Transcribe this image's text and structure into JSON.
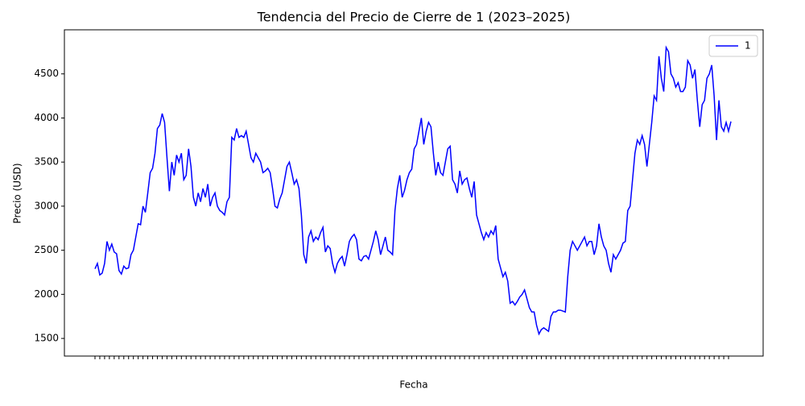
{
  "chart_data": {
    "type": "line",
    "title": "Tendencia del Precio de Cierre de 1 (2023–2025)",
    "x_label": "Fecha",
    "y_label": "Precio (USD)",
    "ylim": [
      1300,
      5000
    ],
    "yticks": [
      1500,
      2000,
      2500,
      3000,
      3500,
      4000,
      4500
    ],
    "legend": "upper right",
    "series": [
      {
        "name": "1",
        "color": "#0000ff",
        "values": [
          2290,
          2350,
          2220,
          2240,
          2350,
          2600,
          2500,
          2570,
          2480,
          2460,
          2270,
          2230,
          2320,
          2290,
          2300,
          2450,
          2500,
          2650,
          2800,
          2790,
          3000,
          2930,
          3150,
          3380,
          3430,
          3600,
          3880,
          3920,
          4050,
          3950,
          3550,
          3170,
          3500,
          3350,
          3580,
          3500,
          3600,
          3300,
          3350,
          3650,
          3450,
          3100,
          3000,
          3150,
          3050,
          3200,
          3100,
          3250,
          3000,
          3100,
          3150,
          3000,
          2950,
          2930,
          2900,
          3050,
          3100,
          3780,
          3750,
          3880,
          3780,
          3800,
          3780,
          3850,
          3700,
          3550,
          3500,
          3600,
          3550,
          3500,
          3380,
          3400,
          3430,
          3380,
          3200,
          3000,
          2980,
          3080,
          3150,
          3300,
          3450,
          3500,
          3380,
          3250,
          3300,
          3200,
          2900,
          2450,
          2350,
          2650,
          2720,
          2600,
          2650,
          2620,
          2700,
          2760,
          2480,
          2550,
          2520,
          2350,
          2250,
          2350,
          2400,
          2430,
          2320,
          2450,
          2600,
          2650,
          2680,
          2620,
          2400,
          2380,
          2430,
          2440,
          2400,
          2500,
          2600,
          2720,
          2620,
          2450,
          2550,
          2650,
          2500,
          2480,
          2450,
          2950,
          3200,
          3350,
          3100,
          3180,
          3300,
          3380,
          3420,
          3650,
          3700,
          3850,
          4000,
          3700,
          3850,
          3950,
          3900,
          3600,
          3350,
          3500,
          3380,
          3350,
          3500,
          3650,
          3680,
          3300,
          3250,
          3150,
          3400,
          3250,
          3300,
          3320,
          3200,
          3100,
          3280,
          2900,
          2800,
          2700,
          2620,
          2700,
          2650,
          2720,
          2680,
          2780,
          2400,
          2300,
          2200,
          2250,
          2150,
          1900,
          1920,
          1880,
          1920,
          1970,
          2000,
          2050,
          1950,
          1850,
          1800,
          1800,
          1650,
          1550,
          1600,
          1620,
          1600,
          1580,
          1750,
          1800,
          1800,
          1820,
          1820,
          1810,
          1800,
          2200,
          2500,
          2600,
          2550,
          2500,
          2550,
          2600,
          2650,
          2550,
          2600,
          2600,
          2450,
          2550,
          2800,
          2650,
          2550,
          2500,
          2350,
          2250,
          2450,
          2400,
          2450,
          2500,
          2580,
          2600,
          2950,
          3000,
          3300,
          3600,
          3750,
          3700,
          3800,
          3700,
          3450,
          3700,
          3950,
          4250,
          4200,
          4700,
          4450,
          4300,
          4800,
          4750,
          4500,
          4450,
          4350,
          4400,
          4300,
          4300,
          4350,
          4650,
          4600,
          4450,
          4550,
          4200,
          3900,
          4150,
          4200,
          4450,
          4500,
          4600,
          4250,
          3750,
          4200,
          3900,
          3850,
          3950,
          3850,
          3960
        ]
      }
    ]
  }
}
